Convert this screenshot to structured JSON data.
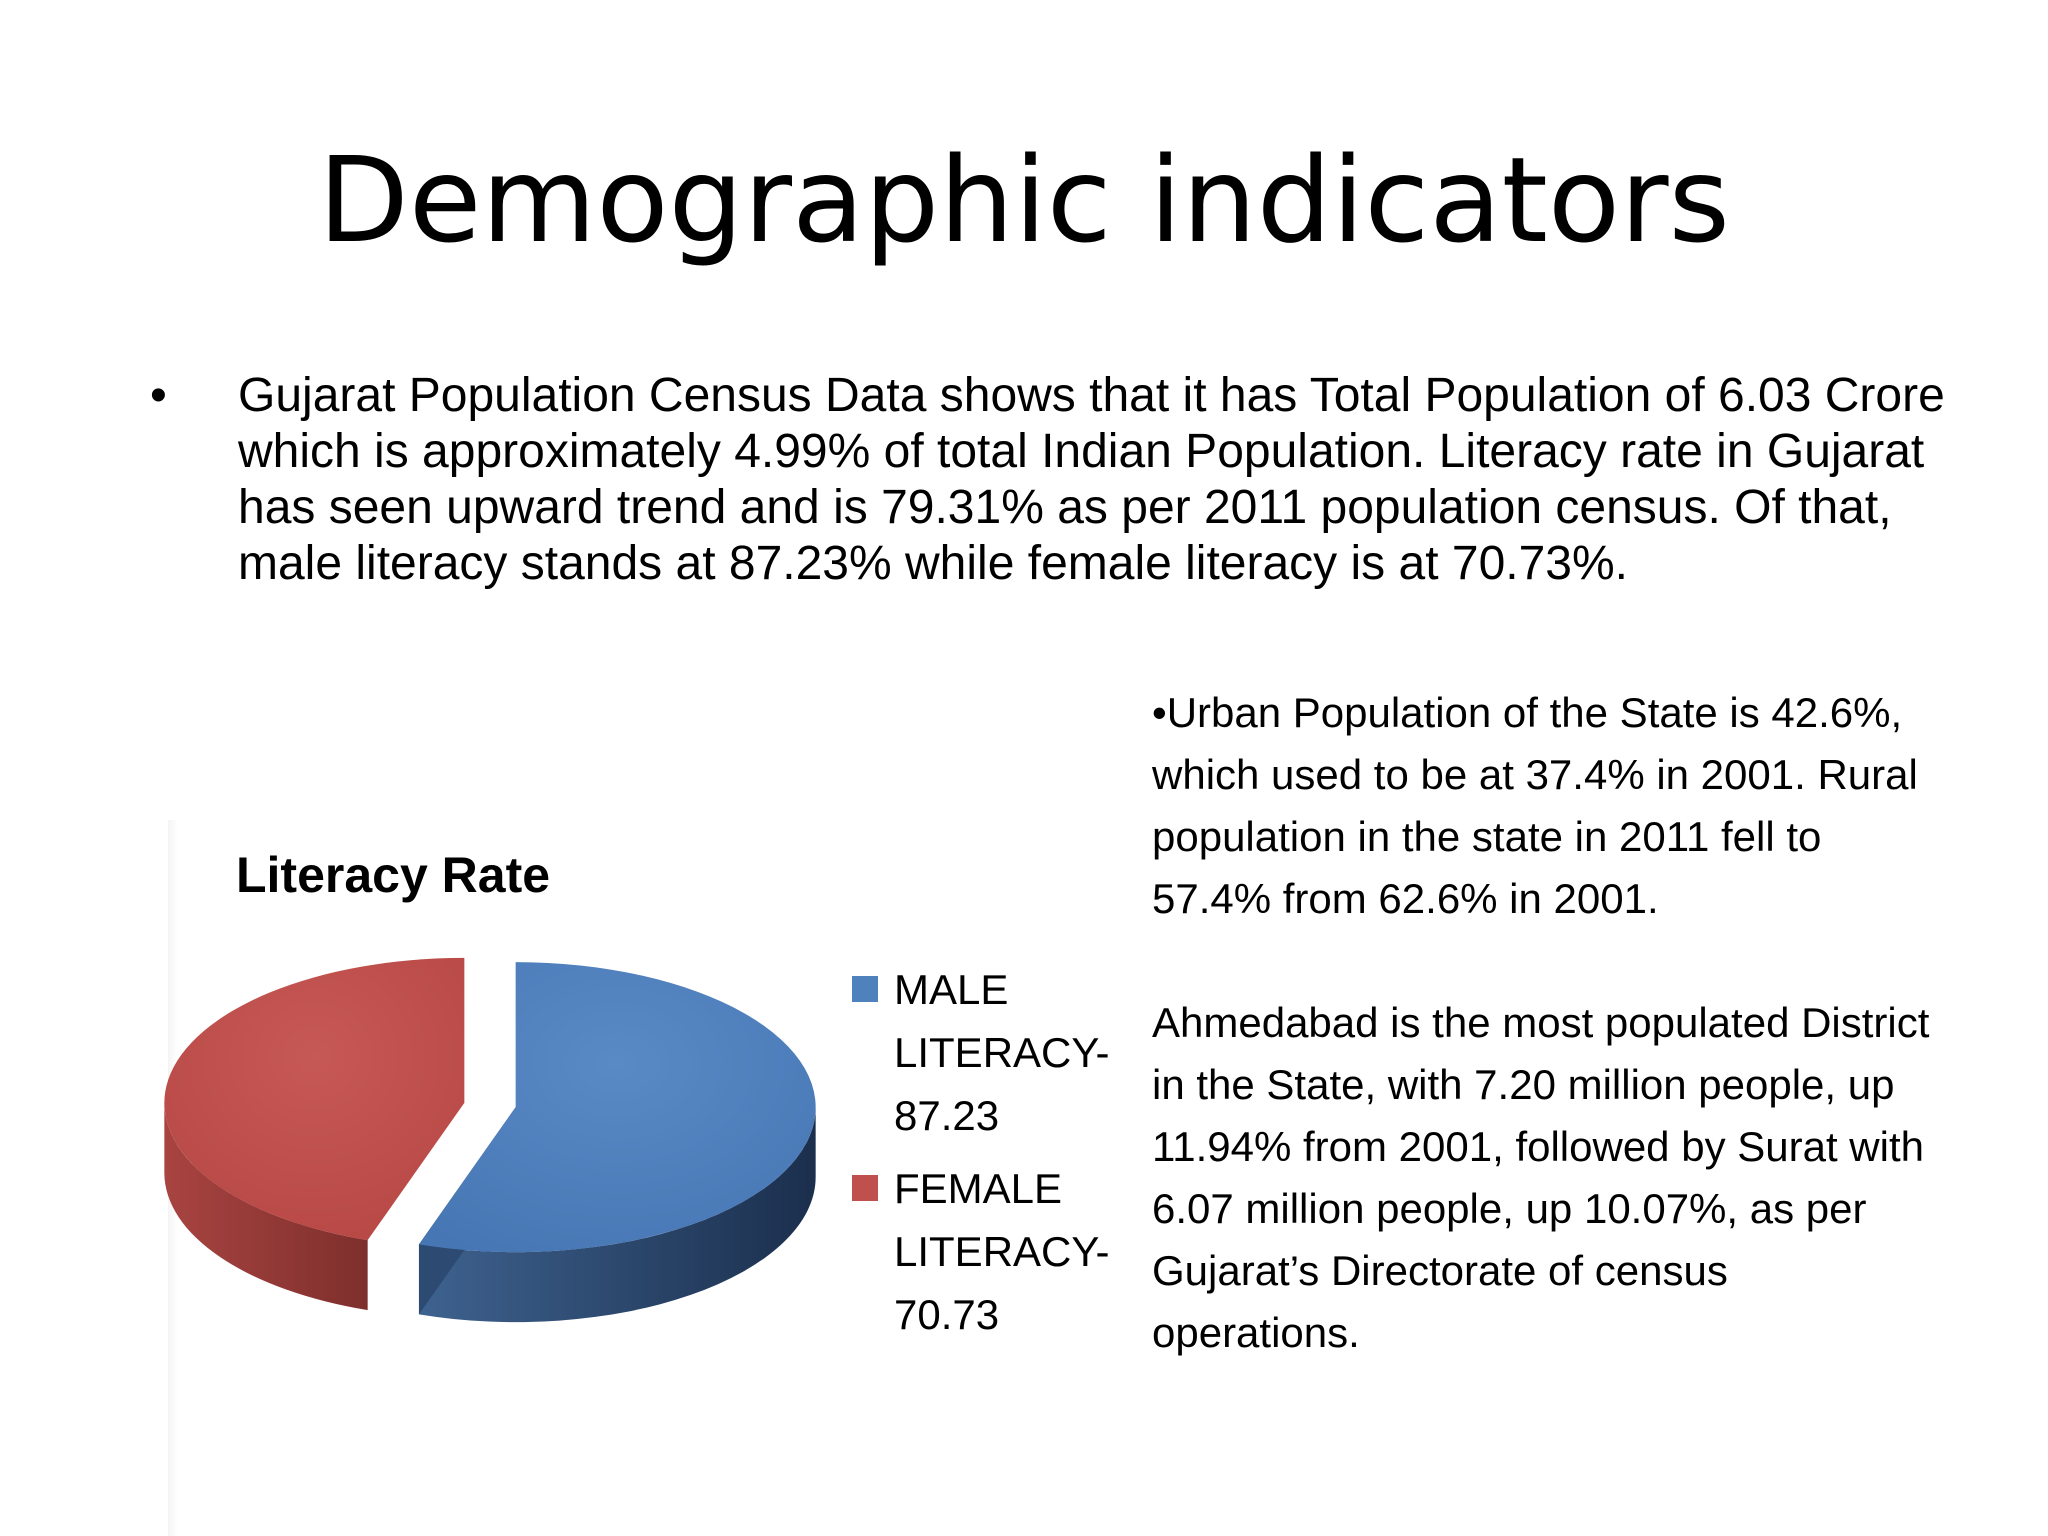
{
  "slide": {
    "title": "Demographic indicators",
    "bullet_symbol": "•",
    "bullet_text": "Gujarat Population Census Data shows that it has Total Population of 6.03 Crore which is approximately 4.99% of total Indian Population. Literacy rate in Gujarat has seen upward trend and is 79.31% as per 2011 population census. Of that, male literacy stands at 87.23% while female literacy is at 70.73%.",
    "side_paragraph_1": "•Urban Population of the State is 42.6%, which used to be at 37.4% in 2001. Rural population in the state in 2011 fell to 57.4% from 62.6% in 2001.",
    "side_paragraph_2": "Ahmedabad is the most populated District in the State, with 7.20 million people, up 11.94% from 2001, followed by Surat with 6.07 million people, up 10.07%, as per Gujarat’s Directorate of census operations."
  },
  "chart_data": {
    "type": "pie",
    "style": "3d-exploded",
    "title": "Literacy Rate",
    "legend_position": "right",
    "categories": [
      "MALE LITERACY-87.23",
      "FEMALE LITERACY-70.73"
    ],
    "values": [
      87.23,
      70.73
    ],
    "colors": [
      "#4f81bd",
      "#c0504d"
    ],
    "legend": [
      {
        "label": "MALE\nLITERACY-\n87.23",
        "color": "#4f81bd"
      },
      {
        "label": "FEMALE\nLITERACY-\n70.73",
        "color": "#c0504d"
      }
    ]
  }
}
